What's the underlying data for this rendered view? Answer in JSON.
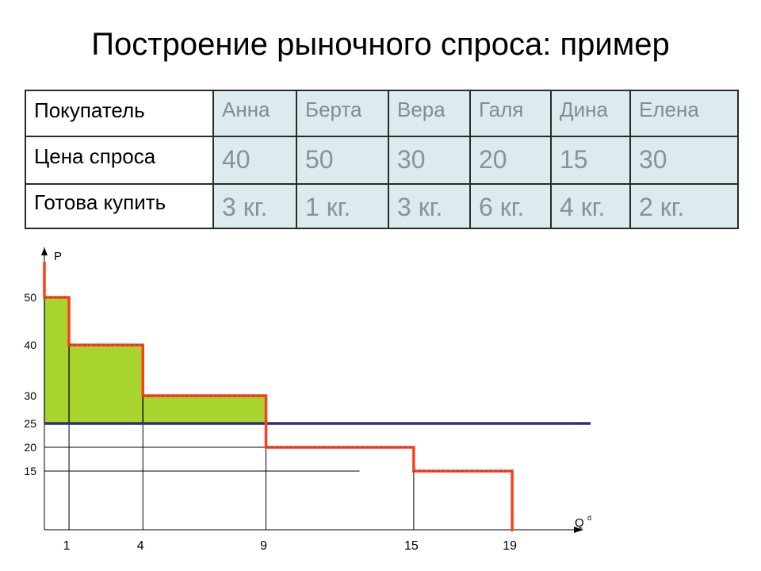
{
  "title": "Построение рыночного спроса: пример",
  "table": {
    "rows": [
      {
        "label": "Покупатель",
        "cells": [
          "Анна",
          "Берта",
          "Вера",
          "Галя",
          "Дина",
          "Елена"
        ]
      },
      {
        "label": "Цена спроса",
        "cells": [
          "40",
          "50",
          "30",
          "20",
          "15",
          "30"
        ]
      },
      {
        "label": "Готова купить",
        "cells": [
          "3 кг.",
          "1 кг.",
          "3 кг.",
          "6 кг.",
          "4 кг.",
          "2 кг."
        ]
      }
    ]
  },
  "chart_data": {
    "type": "line",
    "title": "",
    "xlabel": "Q",
    "xlabel_sup": "d",
    "ylabel": "P",
    "y_ticks": [
      50,
      40,
      30,
      25,
      20,
      15
    ],
    "x_ticks": [
      1,
      4,
      9,
      15,
      19
    ],
    "demand_steps": [
      {
        "from": 0,
        "to": 1,
        "price": 50
      },
      {
        "from": 1,
        "to": 4,
        "price": 40
      },
      {
        "from": 4,
        "to": 9,
        "price": 30
      },
      {
        "from": 9,
        "to": 15,
        "price": 20
      },
      {
        "from": 15,
        "to": 19,
        "price": 15
      }
    ],
    "market_price": 25,
    "surplus_area_above_price": true,
    "colors": {
      "demand": "#ff3f1a",
      "demand_dash": "#b03a3a",
      "price_line": "#2a2f86",
      "surplus_fill": "#a8d42e",
      "axis": "#000000"
    }
  }
}
